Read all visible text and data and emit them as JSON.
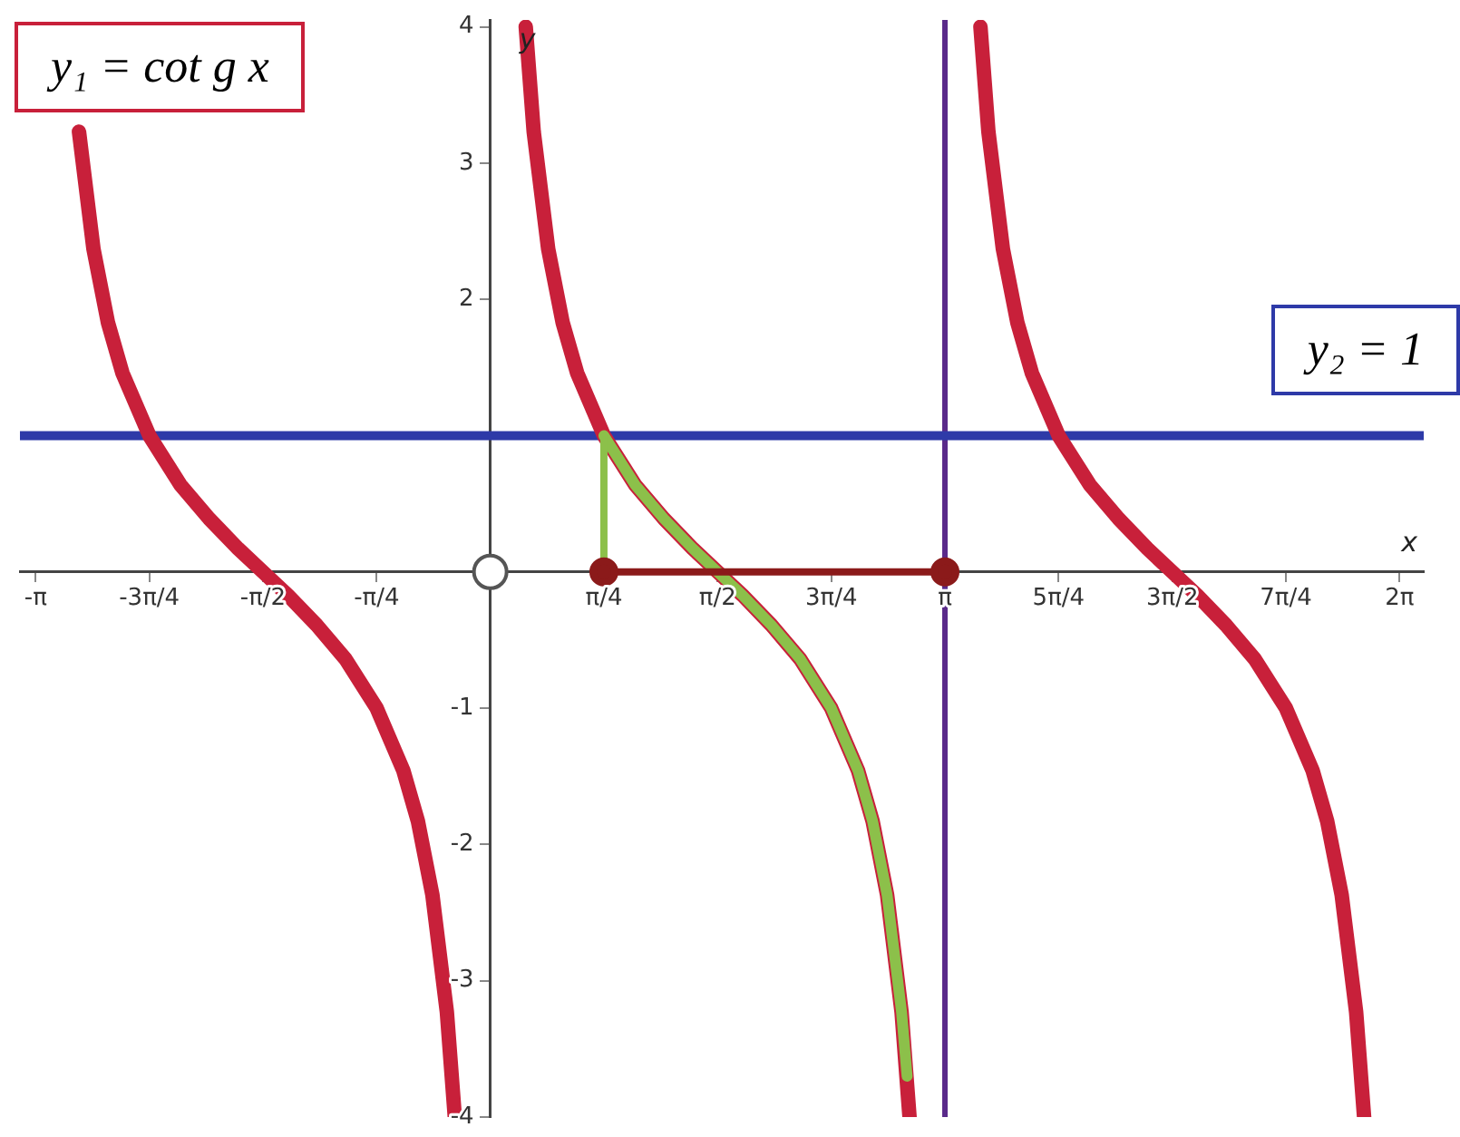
{
  "chart_data": {
    "type": "line",
    "xlabel": "x",
    "ylabel": "y",
    "xlim": [
      -3.25,
      6.45
    ],
    "ylim": [
      -4,
      4.05
    ],
    "xticks": [
      {
        "value": -3.1416,
        "label": "-π"
      },
      {
        "value": -2.3562,
        "label": "-3π/4"
      },
      {
        "value": -1.5708,
        "label": "-π/2"
      },
      {
        "value": -0.7854,
        "label": "-π/4"
      },
      {
        "value": 0.7854,
        "label": "π/4"
      },
      {
        "value": 1.5708,
        "label": "π/2"
      },
      {
        "value": 2.3562,
        "label": "3π/4"
      },
      {
        "value": 3.1416,
        "label": "π"
      },
      {
        "value": 3.927,
        "label": "5π/4"
      },
      {
        "value": 4.7124,
        "label": "3π/2"
      },
      {
        "value": 5.4978,
        "label": "7π/4"
      },
      {
        "value": 6.2832,
        "label": "2π"
      }
    ],
    "yticks": [
      -4,
      -3,
      -2,
      -1,
      {
        "value": 1,
        "label": null
      },
      2,
      3,
      4
    ],
    "grid": false,
    "legend": false,
    "marker": "none",
    "line_style": "solid",
    "ref_lines": [
      {
        "axis": "x",
        "value": 3.1416,
        "color": "#5a2a8a"
      }
    ],
    "series": [
      {
        "name": "y₂ = 1",
        "color": "#2e3aa8",
        "x": [
          -3.25,
          6.45
        ],
        "values": [
          1,
          1
        ]
      },
      {
        "name": "y₁ = cot g x",
        "color": "#c8203a",
        "x": [
          -2.842,
          -2.742,
          -2.642,
          -2.542,
          -2.356,
          -2.142,
          -1.942,
          -1.742,
          -1.571,
          -1.4,
          -1.2,
          -1.0,
          -0.785,
          -0.6,
          -0.5,
          -0.4,
          -0.3,
          -0.245,
          -0.1,
          0.245,
          0.3,
          0.4,
          0.5,
          0.6,
          0.785,
          1.0,
          1.2,
          1.4,
          1.571,
          1.742,
          1.942,
          2.142,
          2.356,
          2.542,
          2.642,
          2.742,
          2.842,
          2.897,
          3.2,
          3.387,
          3.442,
          3.542,
          3.642,
          3.742,
          3.927,
          4.142,
          4.342,
          4.542,
          4.712,
          4.883,
          5.083,
          5.283,
          5.498,
          5.683,
          5.783,
          5.883,
          5.983,
          6.038
        ],
        "values": [
          3.23,
          2.37,
          1.83,
          1.46,
          1,
          0.64,
          0.39,
          0.17,
          0,
          -0.17,
          -0.39,
          -0.64,
          -1,
          -1.46,
          -1.83,
          -2.37,
          -3.23,
          -4,
          null,
          4,
          3.23,
          2.37,
          1.83,
          1.46,
          1,
          0.64,
          0.39,
          0.17,
          0,
          -0.17,
          -0.39,
          -0.64,
          -1,
          -1.46,
          -1.83,
          -2.37,
          -3.23,
          -4,
          null,
          4,
          3.23,
          2.37,
          1.83,
          1.46,
          1,
          0.64,
          0.39,
          0.17,
          0,
          -0.17,
          -0.39,
          -0.64,
          -1,
          -1.46,
          -1.83,
          -2.37,
          -3.23,
          -4
        ]
      },
      {
        "color": "#8cc04a",
        "x": [
          0.785,
          1.0,
          1.2,
          1.4,
          1.571,
          1.742,
          1.942,
          2.142,
          2.356,
          2.542,
          2.642,
          2.742,
          2.842,
          2.88
        ],
        "values": [
          1,
          0.64,
          0.39,
          0.17,
          0,
          -0.17,
          -0.39,
          -0.64,
          -1,
          -1.46,
          -1.83,
          -2.37,
          -3.23,
          -3.7
        ]
      },
      {
        "color": "#8cc04a",
        "x": [
          0.785,
          0.785
        ],
        "values": [
          0,
          1
        ]
      },
      {
        "color": "#8b1a1a",
        "marker": "circle",
        "x": [
          0.785,
          3.1416
        ],
        "values": [
          0,
          0
        ]
      },
      {
        "type": "scatter",
        "color": "#555555",
        "marker": "circle",
        "x": [
          0
        ],
        "values": [
          0
        ]
      }
    ]
  }
}
